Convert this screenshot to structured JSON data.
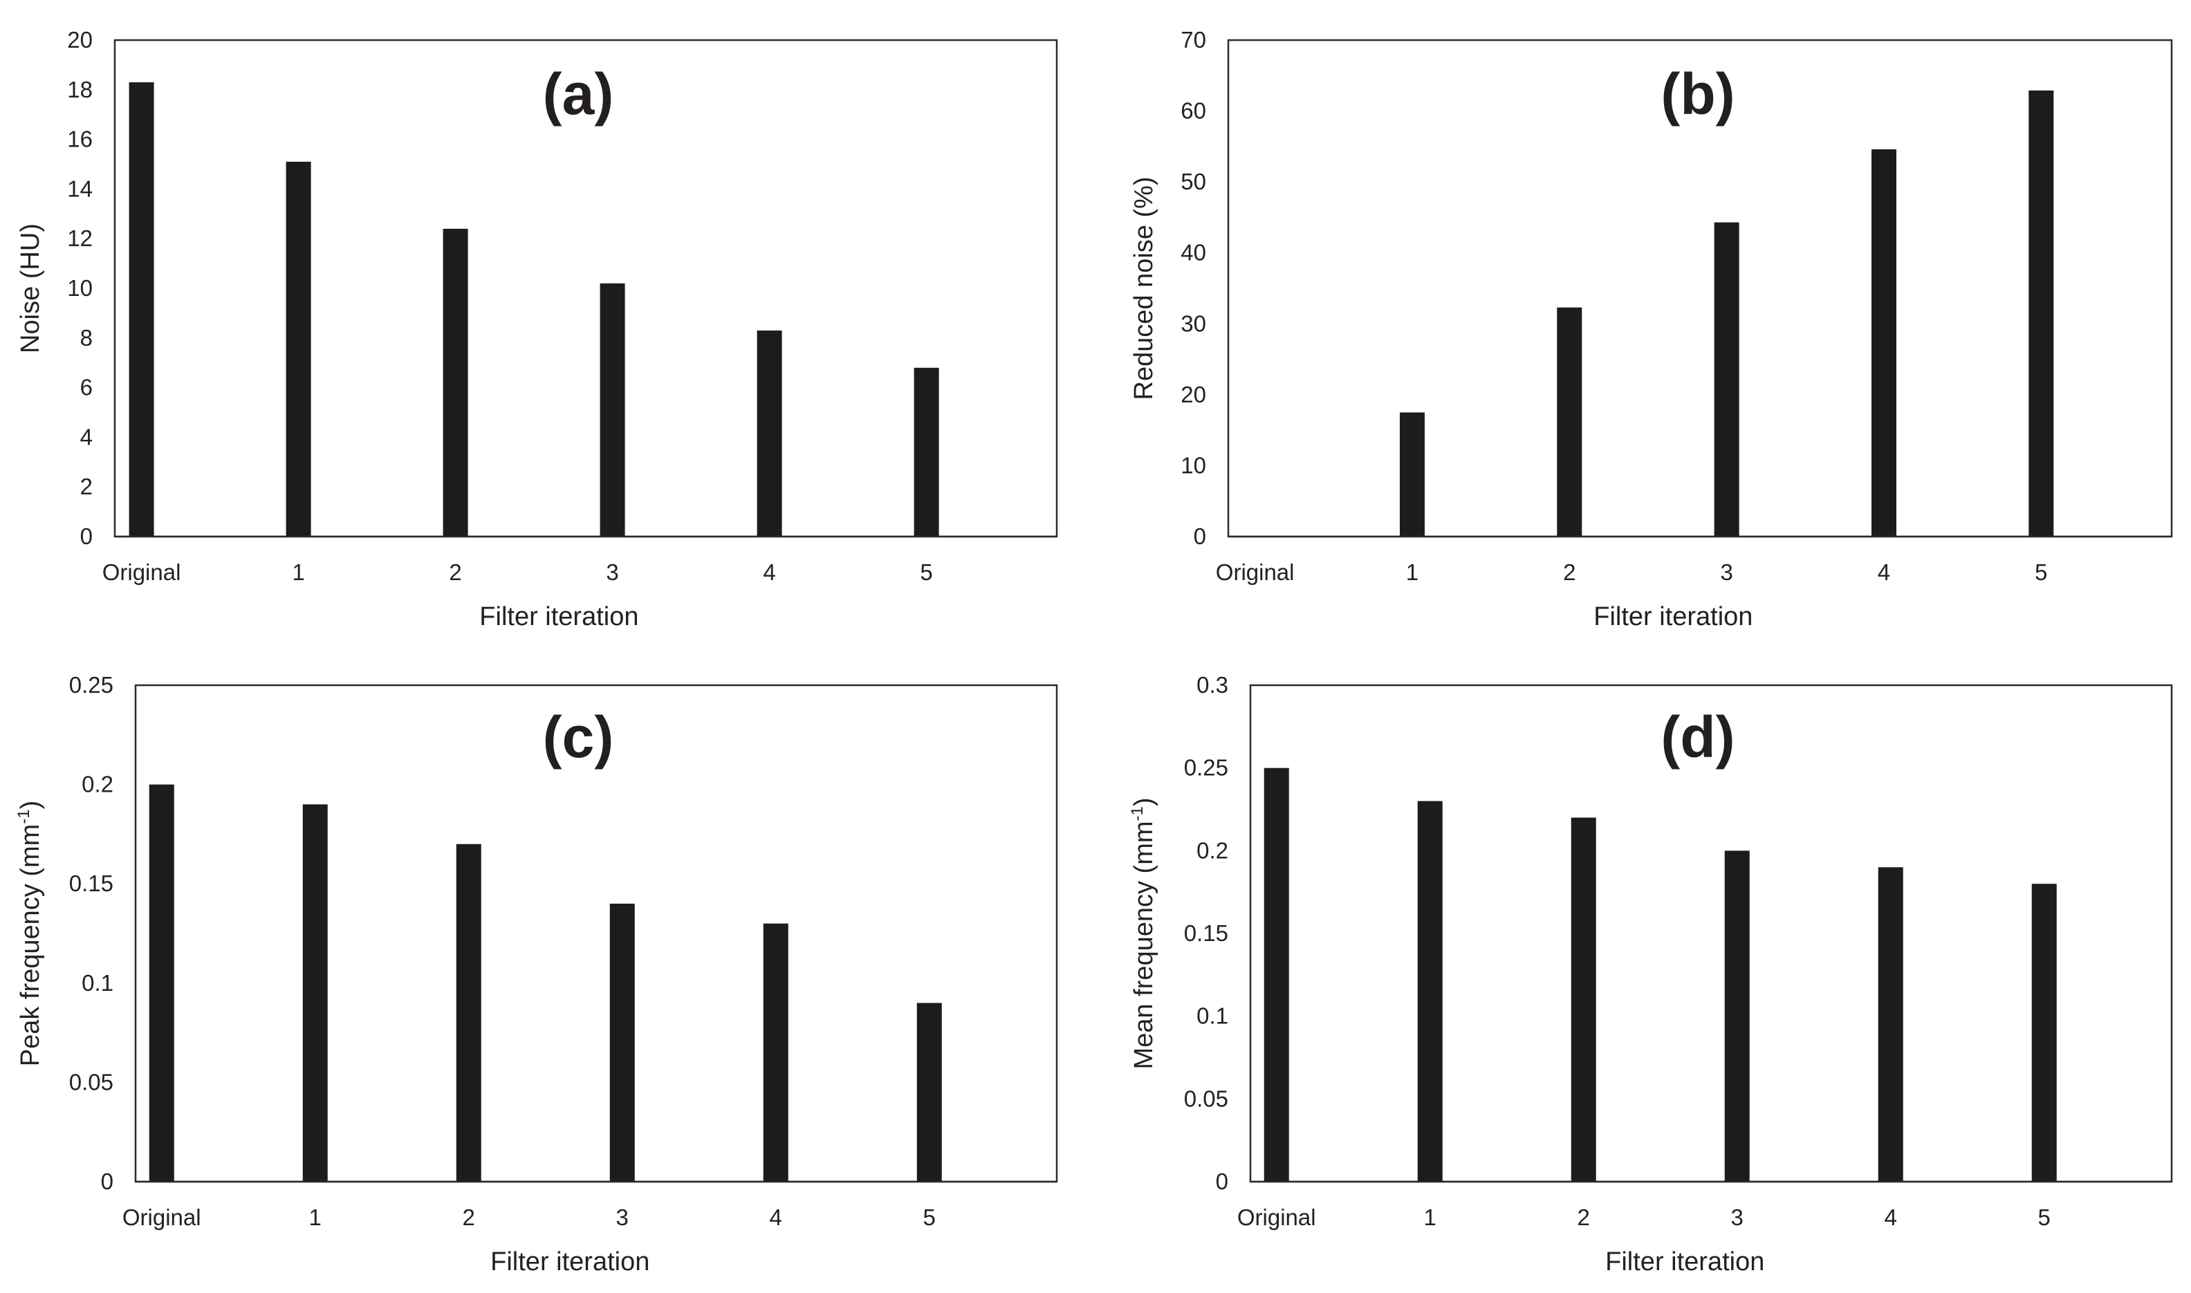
{
  "chart_data": [
    {
      "type": "bar",
      "panel_label": "(a)",
      "categories": [
        "Original",
        "1",
        "2",
        "3",
        "4",
        "5"
      ],
      "values": [
        18.3,
        15.1,
        12.4,
        10.2,
        8.3,
        6.8
      ],
      "xlabel": "Filter iteration",
      "ylabel": "Noise (HU)",
      "ylim": [
        0,
        20
      ],
      "yticks": [
        "0",
        "2",
        "4",
        "6",
        "8",
        "10",
        "12",
        "14",
        "16",
        "18",
        "20"
      ],
      "color": "#1c1c1c"
    },
    {
      "type": "bar",
      "panel_label": "(b)",
      "categories": [
        "Original",
        "1",
        "2",
        "3",
        "4",
        "5"
      ],
      "values": [
        0,
        17.5,
        32.3,
        44.3,
        54.6,
        62.9
      ],
      "xlabel": "Filter iteration",
      "ylabel": "Reduced noise (%)",
      "ylim": [
        0,
        70
      ],
      "yticks": [
        "0",
        "10",
        "20",
        "30",
        "40",
        "50",
        "60",
        "70"
      ],
      "color": "#1c1c1c"
    },
    {
      "type": "bar",
      "panel_label": "(c)",
      "categories": [
        "Original",
        "1",
        "2",
        "3",
        "4",
        "5"
      ],
      "values": [
        0.2,
        0.19,
        0.17,
        0.14,
        0.13,
        0.09
      ],
      "xlabel": "Filter iteration",
      "ylabel": "Peak frequency (mm",
      "ylabel_sup": "-1",
      "ylabel_tail": ")",
      "ylim": [
        0,
        0.25
      ],
      "yticks": [
        "0",
        "0.05",
        "0.1",
        "0.15",
        "0.2",
        "0.25"
      ],
      "color": "#1c1c1c"
    },
    {
      "type": "bar",
      "panel_label": "(d)",
      "categories": [
        "Original",
        "1",
        "2",
        "3",
        "4",
        "5"
      ],
      "values": [
        0.25,
        0.23,
        0.22,
        0.2,
        0.19,
        0.18
      ],
      "xlabel": "Filter iteration",
      "ylabel": "Mean frequency (mm",
      "ylabel_sup": "-1",
      "ylabel_tail": ")",
      "ylim": [
        0,
        0.3
      ],
      "yticks": [
        "0",
        "0.05",
        "0.1",
        "0.15",
        "0.2",
        "0.25",
        "0.3"
      ],
      "color": "#1c1c1c"
    }
  ]
}
